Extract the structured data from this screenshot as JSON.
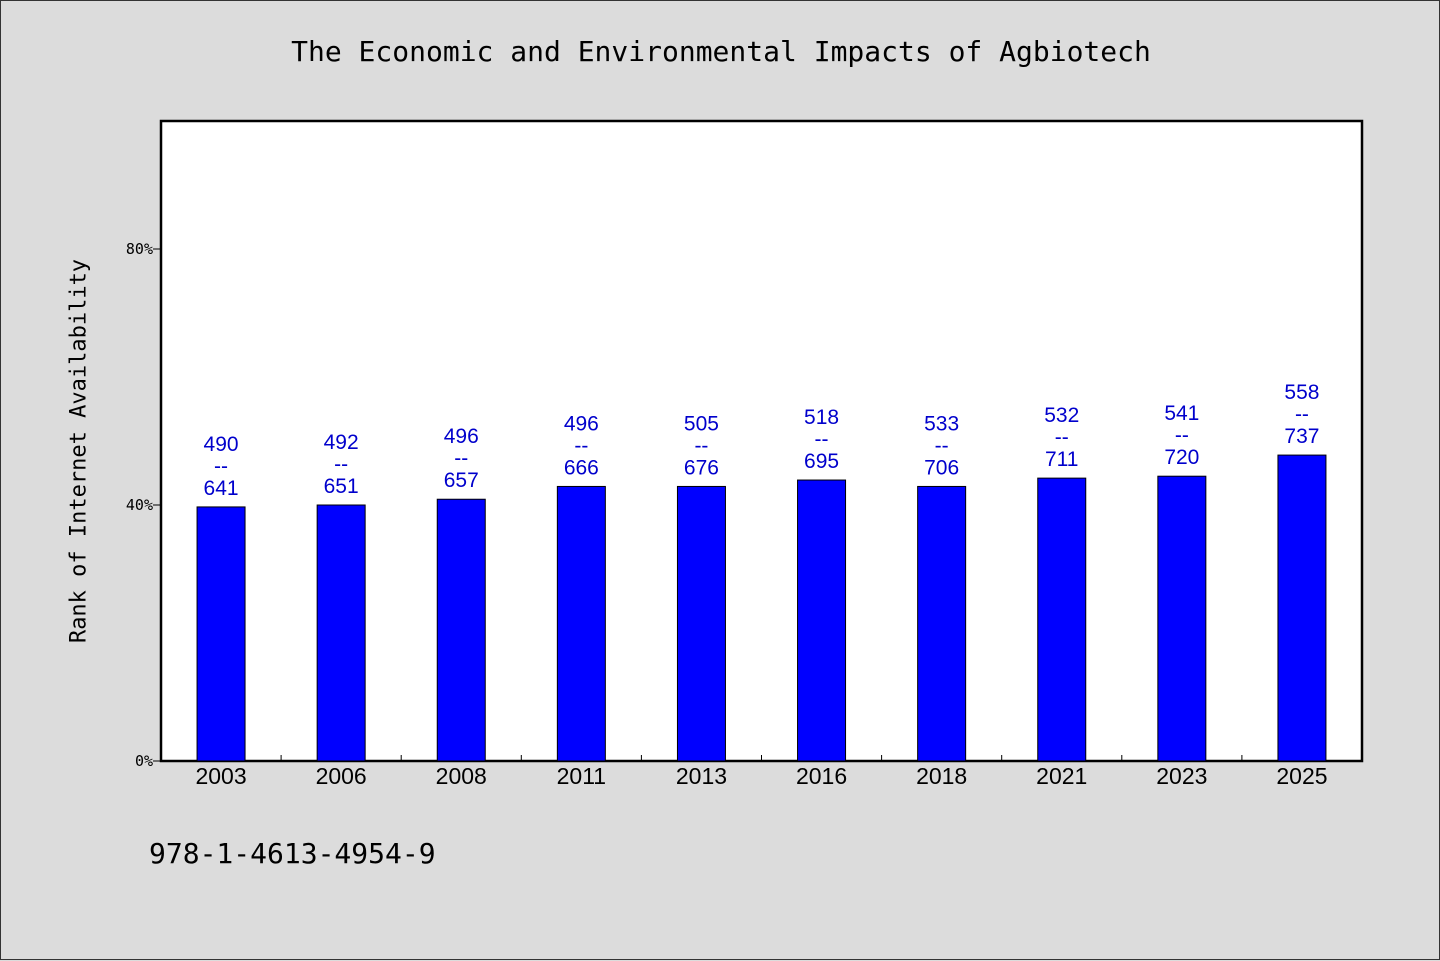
{
  "chart_data": {
    "type": "bar",
    "title": "The Economic and Environmental Impacts of Agbiotech",
    "xlabel": "",
    "ylabel": "Rank of Internet Availability",
    "categories": [
      "2003",
      "2006",
      "2008",
      "2011",
      "2013",
      "2016",
      "2018",
      "2021",
      "2023",
      "2025"
    ],
    "values": [
      39.7,
      40.0,
      40.9,
      42.9,
      42.9,
      43.9,
      42.9,
      44.2,
      44.5,
      47.8
    ],
    "data_labels": [
      [
        "490",
        "--",
        "641"
      ],
      [
        "492",
        "--",
        "651"
      ],
      [
        "496",
        "--",
        "657"
      ],
      [
        "496",
        "--",
        "666"
      ],
      [
        "505",
        "--",
        "676"
      ],
      [
        "518",
        "--",
        "695"
      ],
      [
        "533",
        "--",
        "706"
      ],
      [
        "532",
        "--",
        "711"
      ],
      [
        "541",
        "--",
        "720"
      ],
      [
        "558",
        "--",
        "737"
      ]
    ],
    "yticks": [
      {
        "value": 0,
        "label": "0%"
      },
      {
        "value": 40,
        "label": "40%"
      },
      {
        "value": 80,
        "label": "80%"
      }
    ],
    "ylim": [
      0,
      100
    ],
    "grid": false,
    "colors": {
      "bar": "#0000ff",
      "data_label": "#0000cc",
      "background": "#dcdcdc",
      "plot_background": "#ffffff"
    }
  },
  "footer_code": "978-1-4613-4954-9"
}
